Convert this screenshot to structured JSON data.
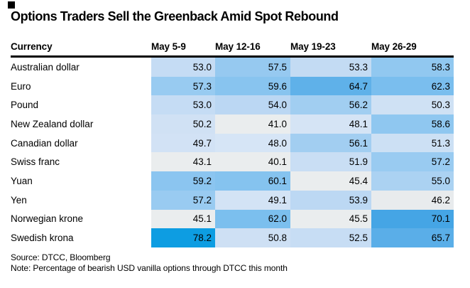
{
  "brand_square_color": "#000000",
  "footer": {
    "source": "Source: DTCC, Bloomberg",
    "note": "Note: Percentage of bearish USD vanilla options through DTCC this month"
  },
  "chart_data": {
    "type": "heatmap",
    "title": "Options Traders Sell the Greenback Amid Spot Rebound",
    "row_label_header": "Currency",
    "columns": [
      "May 5-9",
      "May 12-16",
      "May 19-23",
      "May 26-29"
    ],
    "value_meaning": "Percentage of bearish USD vanilla options through DTCC this month",
    "value_range_observed": [
      40.1,
      78.2
    ],
    "legend_position": "none",
    "grid": false,
    "color_scale": {
      "low_gray": "#eaedee",
      "pale_blue": "#d6e5f6",
      "mid_blue": "#96c9f0",
      "high_blue": "#0d9de2",
      "gray_below_value": 47
    },
    "rows": [
      {
        "label": "Australian dollar",
        "values": [
          53.0,
          57.5,
          53.3,
          58.3
        ],
        "cell_colors": [
          "#c5dcf4",
          "#96c9f0",
          "#c3dbf3",
          "#91c8f0"
        ]
      },
      {
        "label": "Euro",
        "values": [
          57.3,
          59.6,
          64.7,
          62.3
        ],
        "cell_colors": [
          "#98cbf1",
          "#88c4ef",
          "#5fb1e9",
          "#7abeee"
        ]
      },
      {
        "label": "Pound",
        "values": [
          53.0,
          54.0,
          56.2,
          50.3
        ],
        "cell_colors": [
          "#c5dcf4",
          "#bbd7f3",
          "#a1cef1",
          "#cfe1f4"
        ]
      },
      {
        "label": "New Zealand dollar",
        "values": [
          50.2,
          41.0,
          48.1,
          58.6
        ],
        "cell_colors": [
          "#d0e1f4",
          "#eaedee",
          "#d5e4f5",
          "#8fc7f0"
        ]
      },
      {
        "label": "Canadian dollar",
        "values": [
          49.7,
          48.0,
          56.1,
          51.3
        ],
        "cell_colors": [
          "#d2e2f5",
          "#d6e5f6",
          "#a2cef1",
          "#cce0f4"
        ]
      },
      {
        "label": "Swiss franc",
        "values": [
          43.1,
          40.1,
          51.9,
          57.2
        ],
        "cell_colors": [
          "#eaedee",
          "#eaedee",
          "#c9def4",
          "#99cbf1"
        ]
      },
      {
        "label": "Yuan",
        "values": [
          59.2,
          60.1,
          45.4,
          55.0
        ],
        "cell_colors": [
          "#8bc5f0",
          "#85c3ef",
          "#eaedee",
          "#abd2f2"
        ]
      },
      {
        "label": "Yen",
        "values": [
          57.2,
          49.1,
          53.9,
          46.2
        ],
        "cell_colors": [
          "#99cbf1",
          "#d3e3f5",
          "#bcd8f3",
          "#e8ebed"
        ]
      },
      {
        "label": "Norwegian krone",
        "values": [
          45.1,
          62.0,
          45.5,
          70.1
        ],
        "cell_colors": [
          "#eaedee",
          "#7bbfee",
          "#eaedee",
          "#45a5e5"
        ]
      },
      {
        "label": "Swedish krona",
        "values": [
          78.2,
          50.8,
          52.5,
          65.7
        ],
        "cell_colors": [
          "#0d9de2",
          "#cee0f4",
          "#c7ddf4",
          "#5aaee8"
        ]
      }
    ]
  }
}
